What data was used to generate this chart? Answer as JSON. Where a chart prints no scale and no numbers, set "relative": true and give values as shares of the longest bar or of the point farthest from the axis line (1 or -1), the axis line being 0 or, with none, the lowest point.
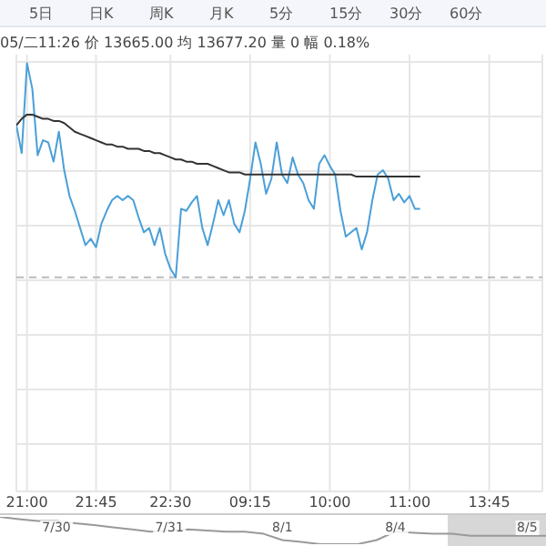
{
  "chart_data": [
    {
      "type": "line",
      "relative": true,
      "grid": true,
      "marker": "none",
      "line_style": "solid",
      "categories": [
        null,
        null,
        "21:00",
        null,
        null,
        null,
        null,
        null,
        null,
        null,
        null,
        null,
        null,
        null,
        null,
        "21:45",
        null,
        null,
        null,
        null,
        null,
        null,
        null,
        null,
        null,
        null,
        null,
        null,
        null,
        "22:30",
        null,
        null,
        null,
        null,
        null,
        null,
        null,
        null,
        null,
        null,
        null,
        null,
        null,
        null,
        "09:15",
        null,
        null,
        null,
        null,
        null,
        null,
        null,
        null,
        null,
        null,
        null,
        null,
        null,
        null,
        "10:00",
        null,
        null,
        null,
        null,
        null,
        null,
        null,
        null,
        null,
        null,
        null,
        null,
        null,
        null,
        "11:00",
        null,
        null,
        null,
        null,
        null,
        null,
        null,
        null,
        null,
        null,
        null,
        null,
        null,
        null,
        "13:45",
        null,
        null,
        null,
        null,
        null,
        null,
        null,
        null,
        null,
        null
      ],
      "series": [
        {
          "color": "#4a9fd8",
          "values": [
            0.71,
            0.58,
            1.0,
            0.88,
            0.57,
            0.64,
            0.63,
            0.54,
            0.68,
            0.5,
            0.38,
            0.31,
            0.23,
            0.15,
            0.18,
            0.14,
            0.25,
            0.31,
            0.36,
            0.38,
            0.36,
            0.38,
            0.36,
            0.28,
            0.21,
            0.23,
            0.15,
            0.23,
            0.11,
            0.04,
            0,
            0.32,
            0.31,
            0.35,
            0.38,
            0.23,
            0.15,
            0.25,
            0.36,
            0.29,
            0.36,
            0.25,
            0.21,
            0.31,
            0.46,
            0.63,
            0.53,
            0.39,
            0.46,
            0.63,
            0.48,
            0.44,
            0.56,
            0.48,
            0.44,
            0.36,
            0.32,
            0.53,
            0.57,
            0.52,
            0.48,
            0.31,
            0.19,
            0.21,
            0.23,
            0.13,
            0.21,
            0.36,
            0.48,
            0.5,
            0.46,
            0.36,
            0.39,
            0.35,
            0.38,
            0.32,
            0.32,
            null,
            null,
            null,
            null,
            null,
            null,
            null,
            null,
            null,
            null,
            null,
            null,
            null,
            null,
            null,
            null,
            null,
            null,
            null,
            null,
            null,
            null,
            null
          ]
        },
        {
          "color": "#333333",
          "values": [
            0.71,
            0.74,
            0.76,
            0.76,
            0.75,
            0.74,
            0.74,
            0.73,
            0.73,
            0.72,
            0.7,
            0.68,
            0.67,
            0.66,
            0.65,
            0.64,
            0.63,
            0.62,
            0.62,
            0.61,
            0.61,
            0.6,
            0.6,
            0.6,
            0.59,
            0.59,
            0.58,
            0.58,
            0.57,
            0.56,
            0.55,
            0.55,
            0.54,
            0.54,
            0.53,
            0.53,
            0.53,
            0.52,
            0.51,
            0.5,
            0.49,
            0.49,
            0.49,
            0.48,
            0.48,
            0.48,
            0.48,
            0.48,
            0.48,
            0.48,
            0.48,
            0.48,
            0.48,
            0.48,
            0.48,
            0.48,
            0.48,
            0.48,
            0.48,
            0.48,
            0.48,
            0.48,
            0.48,
            0.48,
            0.47,
            0.47,
            0.47,
            0.47,
            0.47,
            0.47,
            0.47,
            0.47,
            0.47,
            0.47,
            0.47,
            0.47,
            0.47,
            null,
            null,
            null,
            null,
            null,
            null,
            null,
            null,
            null,
            null,
            null,
            null,
            null,
            null,
            null,
            null,
            null,
            null,
            null,
            null,
            null,
            null,
            null
          ]
        }
      ],
      "ref_lines": [
        {
          "axis": "y",
          "value": 0,
          "color": "#bbbbbb",
          "line_style": "dashed"
        }
      ],
      "annotations": [
        "5日",
        "日K",
        "周K",
        "月K",
        "5分",
        "15分",
        "30分",
        "60分",
        "05/二11:26 价 13665.00 均 13677.20 量 0 幅 0.18%"
      ]
    },
    {
      "type": "line",
      "relative": true,
      "marker": "none",
      "line_style": "solid",
      "categories": [
        null,
        null,
        null,
        "7/30",
        null,
        null,
        null,
        null,
        null,
        "7/31",
        null,
        null,
        null,
        null,
        null,
        "8/1",
        null,
        null,
        null,
        null,
        null,
        "8/4",
        null,
        null,
        null,
        null,
        null,
        null,
        "8/5",
        null
      ],
      "series": [
        {
          "color": "#999999",
          "values": [
            1.0,
            0.92,
            0.85,
            0.85,
            0.77,
            0.7,
            0.62,
            0.54,
            0.46,
            0.5,
            0.54,
            0.5,
            0.46,
            0.46,
            0.38,
            0.15,
            0.08,
            0,
            0,
            0,
            0.15,
            0.46,
            0.42,
            0.38,
            0.38,
            0.31,
            0.31,
            0.31,
            0.31,
            0.31
          ]
        }
      ]
    }
  ]
}
